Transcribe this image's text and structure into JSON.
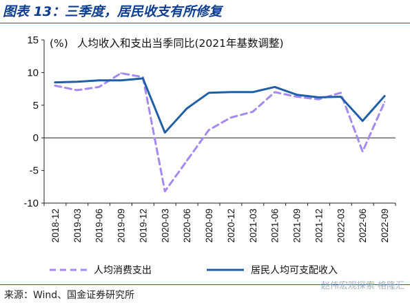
{
  "figure": {
    "title": "图表 13：三季度，居民收支有所修复",
    "source": "来源：Wind、国金证券研究所",
    "watermark": "赵伟宏观探索 格隆汇"
  },
  "chart_data": {
    "type": "line",
    "title": "人均收入和支出当季同比(2021年基数调整)",
    "unit_label": "(%)",
    "x": [
      "2018-12",
      "2019-03",
      "2019-06",
      "2019-09",
      "2019-12",
      "2020-03",
      "2020-06",
      "2020-09",
      "2020-12",
      "2021-03",
      "2021-06",
      "2021-09",
      "2021-12",
      "2022-03",
      "2022-06",
      "2022-09"
    ],
    "ylim": [
      -10,
      15
    ],
    "yticks": [
      -10,
      -5,
      0,
      5,
      10,
      15
    ],
    "grid": false,
    "legend_position": "bottom",
    "series": [
      {
        "name": "人均消费支出",
        "style": "dashed",
        "color": "#a48af0",
        "values": [
          8.0,
          7.3,
          7.8,
          9.9,
          9.3,
          -8.2,
          -3.5,
          1.2,
          3.1,
          4.0,
          7.0,
          6.3,
          5.9,
          6.9,
          -2.1,
          5.5
        ]
      },
      {
        "name": "居民人均可支配收入",
        "style": "solid",
        "color": "#1f5fa8",
        "values": [
          8.5,
          8.6,
          8.8,
          8.8,
          9.1,
          0.8,
          4.5,
          6.9,
          7.0,
          7.0,
          7.8,
          6.6,
          6.2,
          6.3,
          2.6,
          6.4
        ]
      }
    ]
  }
}
